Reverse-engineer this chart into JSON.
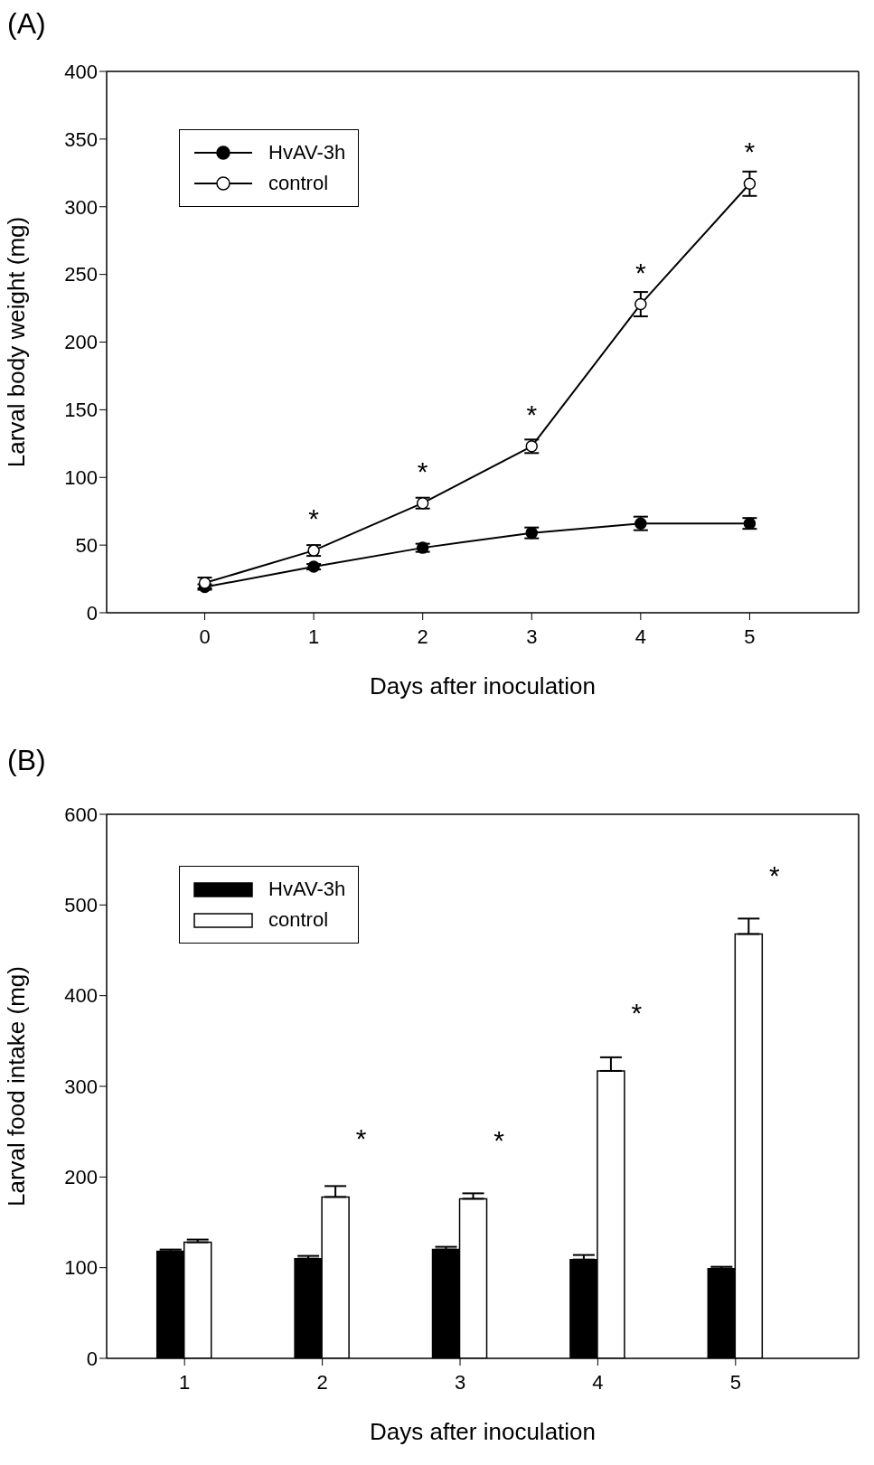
{
  "chart_data": [
    {
      "type": "line",
      "title": "(A)",
      "xlabel": "Days after inoculation",
      "ylabel": "Larval body weight (mg)",
      "x": [
        0,
        1,
        2,
        3,
        4,
        5
      ],
      "series": [
        {
          "name": "HvAV-3h",
          "color": "#000000",
          "values": [
            19,
            34,
            48,
            59,
            66,
            66
          ],
          "errors": [
            2,
            2,
            3,
            4,
            5,
            4
          ]
        },
        {
          "name": "control",
          "color": "#000000",
          "values": [
            22,
            46,
            81,
            123,
            228,
            317
          ],
          "errors": [
            4,
            4,
            4,
            5,
            9,
            9
          ]
        }
      ],
      "xlim": [
        -0.9,
        6
      ],
      "xticks": [
        0,
        1,
        2,
        3,
        4,
        5
      ],
      "ylim": [
        0,
        400
      ],
      "yticks": [
        0,
        50,
        100,
        150,
        200,
        250,
        300,
        350,
        400
      ],
      "grid": false,
      "legend": "top left",
      "marker": "circle",
      "line_style": "solid",
      "annotations": [
        {
          "text": "*",
          "x": 1,
          "y": 46
        },
        {
          "text": "*",
          "x": 2,
          "y": 81
        },
        {
          "text": "*",
          "x": 3,
          "y": 123
        },
        {
          "text": "*",
          "x": 4,
          "y": 228
        },
        {
          "text": "*",
          "x": 5,
          "y": 317
        }
      ]
    },
    {
      "type": "bar",
      "title": "(B)",
      "xlabel": "Days after inoculation",
      "ylabel": "Larval food intake (mg)",
      "categories": [
        "1",
        "2",
        "3",
        "4",
        "5"
      ],
      "series": [
        {
          "name": "HvAV-3h",
          "color": "#000000",
          "values": [
            118,
            110,
            120,
            109,
            99
          ],
          "errors": [
            [
              118,
              120
            ],
            [
              110,
              113
            ],
            [
              120,
              123
            ],
            [
              109,
              114
            ],
            [
              99,
              101
            ]
          ]
        },
        {
          "name": "control",
          "color": "#ffffff",
          "values": [
            128,
            178,
            176,
            317,
            468
          ],
          "errors": [
            [
              128,
              131
            ],
            [
              178,
              190
            ],
            [
              176,
              182
            ],
            [
              317,
              332
            ],
            [
              468,
              485
            ]
          ]
        }
      ],
      "ylim": [
        0,
        600
      ],
      "yticks": [
        0,
        100,
        200,
        300,
        400,
        500,
        600
      ],
      "grid": false,
      "legend": "top left",
      "annotations": [
        {
          "text": "*",
          "x": "2",
          "y": 178
        },
        {
          "text": "*",
          "x": "3",
          "y": 176
        },
        {
          "text": "*",
          "x": "4",
          "y": 317
        },
        {
          "text": "*",
          "x": "5",
          "y": 468
        }
      ]
    }
  ]
}
